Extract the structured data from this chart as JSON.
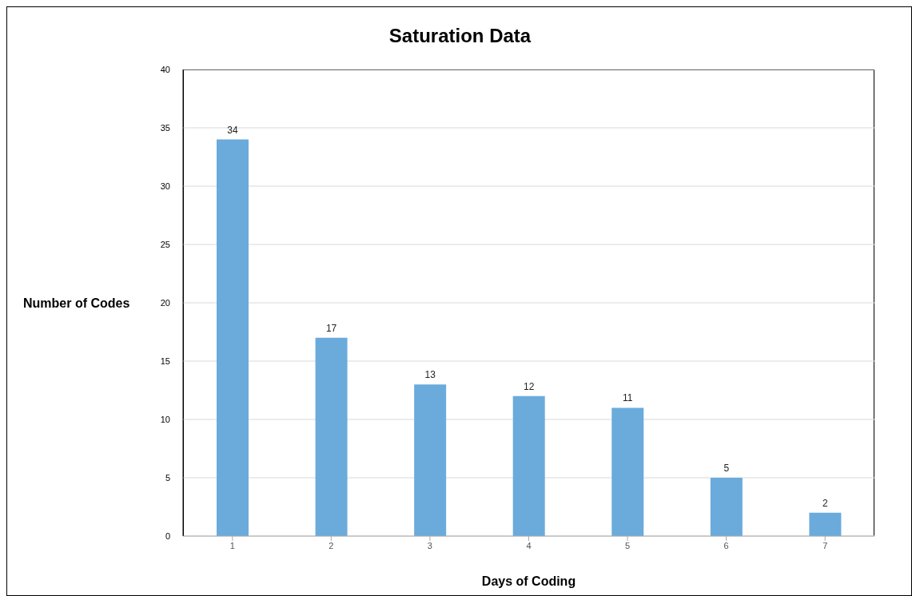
{
  "chart_data": {
    "type": "bar",
    "title": "Saturation Data",
    "xlabel": "Days of Coding",
    "ylabel": "Number of Codes",
    "categories": [
      "1",
      "2",
      "3",
      "4",
      "5",
      "6",
      "7"
    ],
    "values": [
      34,
      17,
      13,
      12,
      11,
      5,
      2
    ],
    "color": "#6aabdc",
    "ylim": [
      0,
      40
    ],
    "yticks": [
      0,
      5,
      10,
      15,
      20,
      25,
      30,
      35,
      40
    ],
    "grid": "y",
    "data_labels": true
  }
}
